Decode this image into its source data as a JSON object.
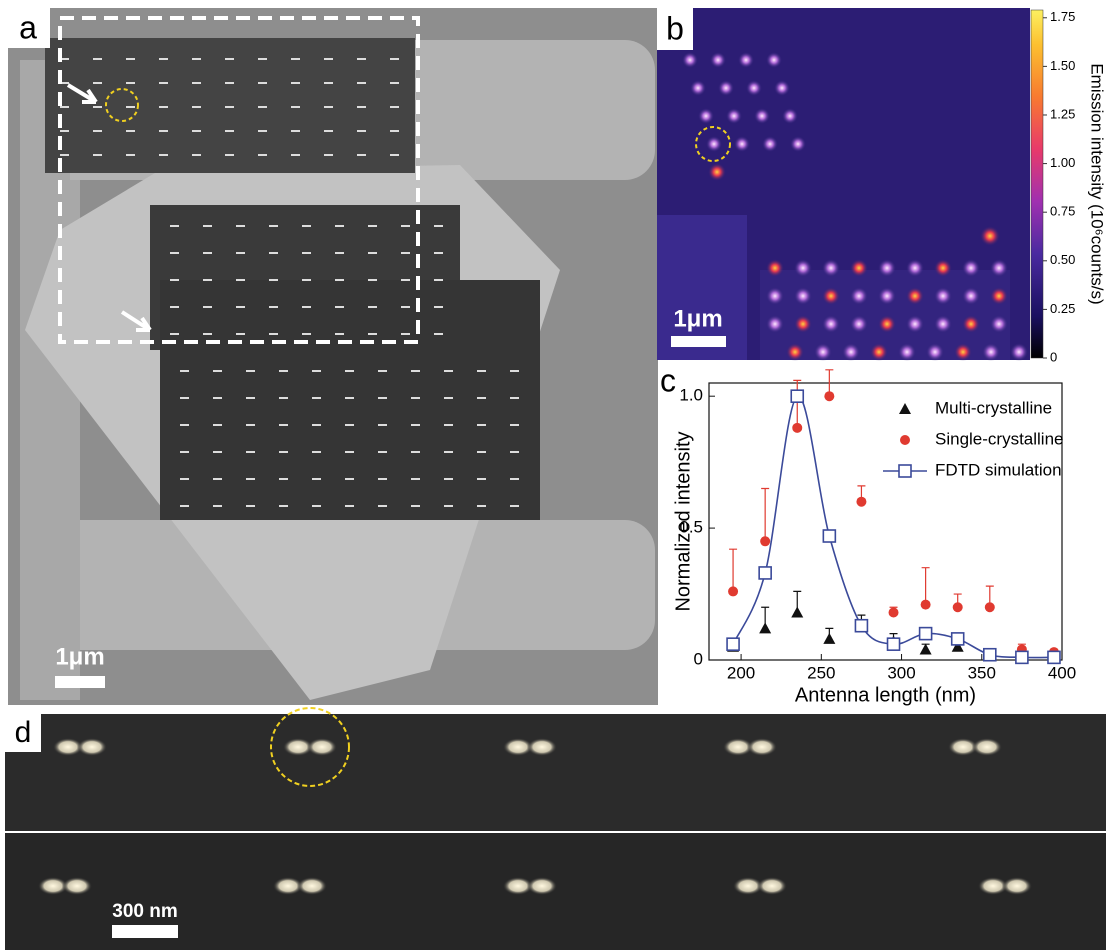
{
  "panels": {
    "a": {
      "label": "a",
      "scale_bar": "1μm"
    },
    "b": {
      "label": "b",
      "scale_bar": "1μm",
      "colorbar": {
        "label": "Emission intensity (10⁶counts/s)",
        "lim": [
          0,
          1.79
        ],
        "ticks": [
          0,
          0.25,
          {
            "value": 0.5,
            "label": "0.50"
          },
          0.75,
          {
            "value": 1,
            "label": "1.00"
          },
          1.25,
          {
            "value": 1.5,
            "label": "1.50"
          },
          1.75
        ]
      }
    },
    "d": {
      "label": "d",
      "scale_bar": "300 nm"
    }
  },
  "chart_data": {
    "type": "scatter",
    "label": "c",
    "xlabel": "Antenna length (nm)",
    "ylabel": "Normalized intensity",
    "x": [
      195,
      215,
      235,
      255,
      275,
      295,
      315,
      335,
      355,
      375,
      395
    ],
    "xlim": [
      180,
      400
    ],
    "xticks": [
      200,
      250,
      300,
      350,
      400
    ],
    "ylim": [
      0,
      1.05
    ],
    "yticks": [
      0,
      0.5,
      {
        "value": 1,
        "label": "1.0"
      }
    ],
    "legend": "upper right",
    "series": [
      {
        "name": "Multi-crystalline",
        "color": "#111111",
        "marker": "triangle",
        "values": [
          0.05,
          0.12,
          0.18,
          0.08,
          0.13,
          0.07,
          0.04,
          0.05,
          0.02,
          0.01,
          0.01
        ],
        "errors": [
          0.03,
          0.08,
          0.08,
          0.04,
          0.04,
          0.03,
          0.02,
          0.03,
          0.01,
          0.01,
          0.01
        ]
      },
      {
        "name": "Single-crystalline",
        "color": "#e03a30",
        "marker": "circle",
        "values": [
          0.26,
          0.45,
          0.88,
          1.0,
          0.6,
          0.18,
          0.21,
          0.2,
          0.2,
          0.04,
          0.03
        ],
        "errors": [
          0.16,
          0.2,
          0.18,
          0.1,
          0.06,
          0.02,
          0.14,
          0.05,
          0.08,
          0.02,
          0.01
        ]
      },
      {
        "name": "FDTD simulation",
        "color": "#3b4a9a",
        "marker": "square-open",
        "line": true,
        "values": [
          0.06,
          0.33,
          1.0,
          0.47,
          0.13,
          0.06,
          0.1,
          0.08,
          0.02,
          0.01,
          0.01
        ]
      }
    ]
  }
}
